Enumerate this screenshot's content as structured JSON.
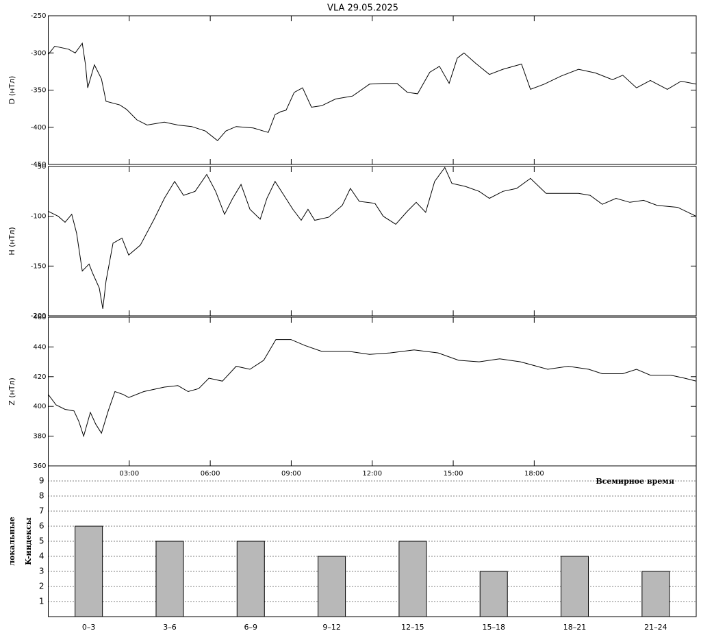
{
  "chart_data": [
    {
      "type": "line",
      "title": "VLA   29.05.2025",
      "ylabel": "D (нТл)",
      "xlim": [
        0,
        24
      ],
      "ylim": [
        -450,
        -250
      ],
      "yticks": [
        -250,
        -300,
        -350,
        -400,
        -450
      ],
      "color": "#000000",
      "x": [
        0,
        0.24,
        0.75,
        1.0,
        1.26,
        1.38,
        1.46,
        1.71,
        1.97,
        2.14,
        2.65,
        2.9,
        3.28,
        3.66,
        4.3,
        4.8,
        5.31,
        5.82,
        6.27,
        6.58,
        6.96,
        7.59,
        8.15,
        8.4,
        8.61,
        8.81,
        9.11,
        9.42,
        9.75,
        10.13,
        10.64,
        11.27,
        11.9,
        12.41,
        12.92,
        13.3,
        13.68,
        14.13,
        14.49,
        14.85,
        15.15,
        15.4,
        15.83,
        16.34,
        16.84,
        17.53,
        17.86,
        18.37,
        19.0,
        19.64,
        20.27,
        20.9,
        21.28,
        21.79,
        22.3,
        22.93,
        23.44,
        24
      ],
      "values": [
        -302,
        -291,
        -295,
        -300,
        -287,
        -316,
        -347,
        -316,
        -335,
        -365,
        -370,
        -376,
        -390,
        -397,
        -393,
        -397,
        -399,
        -405,
        -418,
        -405,
        -399,
        -401,
        -407,
        -383,
        -379,
        -377,
        -353,
        -347,
        -373,
        -371,
        -362,
        -358,
        -342,
        -341,
        -341,
        -353,
        -355,
        -326,
        -318,
        -341,
        -307,
        -300,
        -314,
        -329,
        -322,
        -315,
        -349,
        -342,
        -331,
        -322,
        -327,
        -336,
        -330,
        -347,
        -337,
        -349,
        -338,
        -342
      ]
    },
    {
      "type": "line",
      "ylabel": "H (нТл)",
      "xlim": [
        0,
        24
      ],
      "ylim": [
        -200,
        -50
      ],
      "yticks": [
        -50,
        -100,
        -150,
        -200
      ],
      "color": "#000000",
      "x": [
        0,
        0.37,
        0.62,
        0.87,
        1.05,
        1.26,
        1.51,
        1.64,
        1.89,
        2.02,
        2.14,
        2.4,
        2.73,
        2.98,
        3.41,
        3.92,
        4.3,
        4.68,
        5.01,
        5.44,
        5.87,
        6.2,
        6.53,
        6.83,
        7.14,
        7.47,
        7.85,
        8.1,
        8.4,
        8.73,
        9.06,
        9.37,
        9.62,
        9.87,
        10.38,
        10.89,
        11.19,
        11.52,
        12.1,
        12.41,
        12.87,
        13.3,
        13.63,
        13.98,
        14.31,
        14.69,
        14.95,
        15.45,
        15.96,
        16.34,
        16.84,
        17.35,
        17.86,
        18.44,
        19.0,
        19.64,
        20.07,
        20.52,
        21.03,
        21.54,
        22.05,
        22.55,
        23.31,
        24
      ],
      "values": [
        -95,
        -100,
        -106,
        -98,
        -117,
        -155,
        -148,
        -157,
        -172,
        -193,
        -165,
        -127,
        -122,
        -139,
        -129,
        -103,
        -82,
        -65,
        -79,
        -75,
        -58,
        -75,
        -98,
        -82,
        -68,
        -93,
        -103,
        -82,
        -65,
        -79,
        -93,
        -104,
        -93,
        -104,
        -101,
        -89,
        -72,
        -85,
        -87,
        -100,
        -108,
        -95,
        -86,
        -96,
        -65,
        -51,
        -67,
        -70,
        -75,
        -82,
        -75,
        -72,
        -62,
        -77,
        -77,
        -77,
        -79,
        -88,
        -82,
        -86,
        -84,
        -89,
        -91,
        -100
      ]
    },
    {
      "type": "line",
      "ylabel": "Z (нТл)",
      "xlabel": "Всемирное время",
      "xlim": [
        0,
        24
      ],
      "ylim": [
        360,
        460
      ],
      "yticks": [
        360,
        380,
        400,
        420,
        440,
        460
      ],
      "color": "#000000",
      "xticks": [
        {
          "value": 3,
          "label": "03:00"
        },
        {
          "value": 6,
          "label": "06:00"
        },
        {
          "value": 9,
          "label": "09:00"
        },
        {
          "value": 12,
          "label": "12:00"
        },
        {
          "value": 15,
          "label": "15:00"
        },
        {
          "value": 18,
          "label": "18:00"
        }
      ],
      "x": [
        0,
        0.29,
        0.62,
        0.95,
        1.13,
        1.31,
        1.56,
        1.76,
        1.97,
        2.22,
        2.47,
        2.78,
        2.98,
        3.54,
        4.3,
        4.8,
        5.18,
        5.57,
        5.95,
        6.45,
        6.96,
        7.47,
        7.98,
        8.43,
        8.99,
        9.5,
        10.13,
        11.14,
        11.9,
        12.66,
        13.55,
        14.44,
        15.2,
        15.96,
        16.72,
        17.49,
        18.5,
        19.26,
        20.02,
        20.52,
        21.28,
        21.79,
        22.3,
        23.06,
        23.57,
        24
      ],
      "values": [
        408,
        401,
        398,
        397,
        390,
        380,
        396,
        388,
        382,
        397,
        410,
        408,
        406,
        410,
        413,
        414,
        410,
        412,
        419,
        417,
        427,
        425,
        431,
        445,
        445,
        441,
        437,
        437,
        435,
        436,
        438,
        436,
        431,
        430,
        432,
        430,
        425,
        427,
        425,
        422,
        422,
        425,
        421,
        421,
        419,
        417
      ]
    },
    {
      "type": "bar",
      "ylabel": [
        "локальные",
        "K-индексы"
      ],
      "categories": [
        "0–3",
        "3–6",
        "6–9",
        "9–12",
        "12–15",
        "15–18",
        "18–21",
        "21–24"
      ],
      "values": [
        6,
        5,
        5,
        4,
        5,
        3,
        4,
        3
      ],
      "color": "#b8b8b8",
      "ylim": [
        0,
        10
      ],
      "yticks": [
        1,
        2,
        3,
        4,
        5,
        6,
        7,
        8,
        9
      ],
      "grid": true
    }
  ]
}
